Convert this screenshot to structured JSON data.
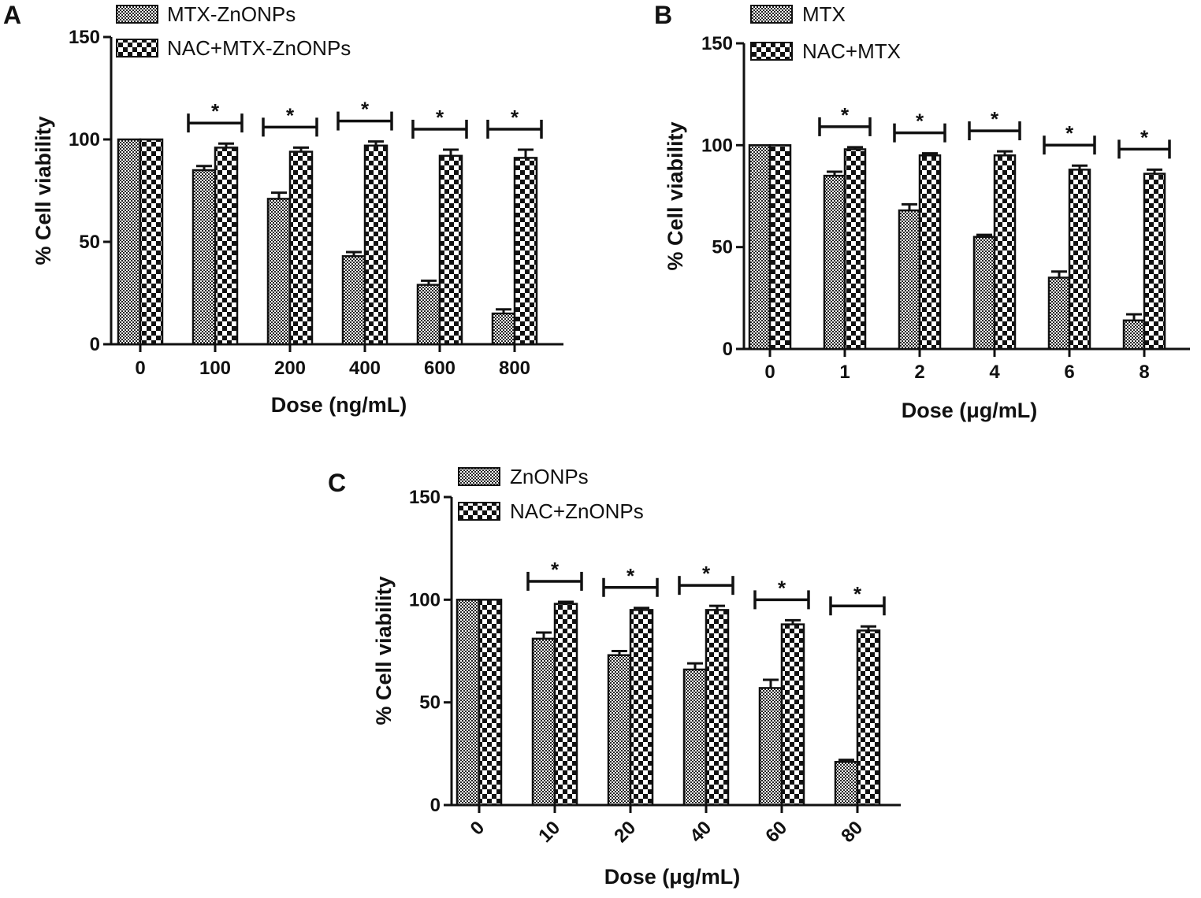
{
  "colors": {
    "axis": "#111111",
    "bar_outline": "#111111",
    "fine_pattern_fg": "#222222",
    "checker_pattern_fg": "#111111",
    "background": "#ffffff"
  },
  "chart_data": [
    {
      "id": "A",
      "type": "bar",
      "panel_label": "A",
      "xlabel": "Dose (ng/mL)",
      "ylabel": "% Cell viability",
      "ylim": [
        0,
        150
      ],
      "yticks": [
        "0",
        "50",
        "100",
        "150"
      ],
      "categories": [
        "0",
        "100",
        "200",
        "400",
        "600",
        "800"
      ],
      "series": [
        {
          "name": "MTX-ZnONPs",
          "pattern": "fine",
          "values": [
            100,
            85,
            71,
            43,
            29,
            15
          ],
          "errors": [
            0,
            2,
            3,
            2,
            2,
            2
          ]
        },
        {
          "name": "NAC+MTX-ZnONPs",
          "pattern": "checker",
          "values": [
            100,
            96,
            94,
            97,
            92,
            91
          ],
          "errors": [
            0,
            2,
            2,
            2,
            3,
            4
          ]
        }
      ],
      "significance": [
        "",
        "*",
        "*",
        "*",
        "*",
        "*"
      ],
      "tick_rotation": 0
    },
    {
      "id": "B",
      "type": "bar",
      "panel_label": "B",
      "xlabel": "Dose (μg/mL)",
      "ylabel": "% Cell viability",
      "ylim": [
        0,
        150
      ],
      "yticks": [
        "0",
        "50",
        "100",
        "150"
      ],
      "categories": [
        "0",
        "1",
        "2",
        "4",
        "6",
        "8"
      ],
      "series": [
        {
          "name": "MTX",
          "pattern": "fine",
          "values": [
            100,
            85,
            68,
            55,
            35,
            14
          ],
          "errors": [
            0,
            2,
            3,
            1,
            3,
            3
          ]
        },
        {
          "name": "NAC+MTX",
          "pattern": "checker",
          "values": [
            100,
            98,
            95,
            95,
            88,
            86
          ],
          "errors": [
            0,
            1,
            1,
            2,
            2,
            2
          ]
        }
      ],
      "significance": [
        "",
        "*",
        "*",
        "*",
        "*",
        "*"
      ],
      "tick_rotation": 0
    },
    {
      "id": "C",
      "type": "bar",
      "panel_label": "C",
      "xlabel": "Dose (μg/mL)",
      "ylabel": "% Cell viability",
      "ylim": [
        0,
        150
      ],
      "yticks": [
        "0",
        "50",
        "100",
        "150"
      ],
      "categories": [
        "0",
        "10",
        "20",
        "40",
        "60",
        "80"
      ],
      "series": [
        {
          "name": "ZnONPs",
          "pattern": "fine",
          "values": [
            100,
            81,
            73,
            66,
            57,
            21
          ],
          "errors": [
            0,
            3,
            2,
            3,
            4,
            1
          ]
        },
        {
          "name": "NAC+ZnONPs",
          "pattern": "checker",
          "values": [
            100,
            98,
            95,
            95,
            88,
            85
          ],
          "errors": [
            0,
            1,
            1,
            2,
            2,
            2
          ]
        }
      ],
      "significance": [
        "",
        "*",
        "*",
        "*",
        "*",
        "*"
      ],
      "tick_rotation": -45
    }
  ]
}
